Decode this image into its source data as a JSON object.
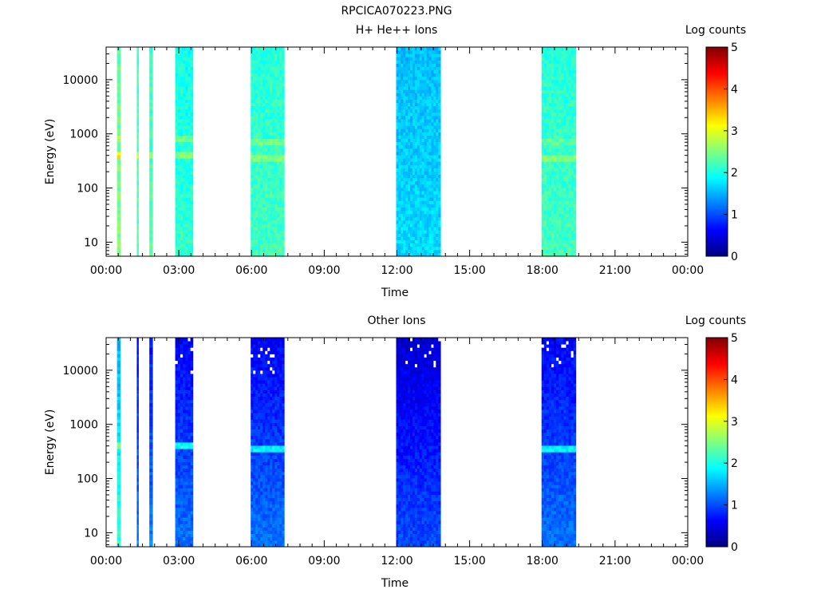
{
  "figure_title": "RPCICA070223.PNG",
  "chart_data": [
    {
      "type": "heatmap",
      "title": "H+ He++ Ions",
      "xlabel": "Time",
      "ylabel": "Energy (eV)",
      "x_ticks": [
        "00:00",
        "03:00",
        "06:00",
        "09:00",
        "12:00",
        "15:00",
        "18:00",
        "21:00",
        "00:00"
      ],
      "x_range_hours": [
        0,
        24
      ],
      "y_scale": "log",
      "y_range_eV": [
        5.5,
        40000
      ],
      "y_ticks": [
        "10",
        "100",
        "1000",
        "10000"
      ],
      "colorbar": {
        "label": "Log counts",
        "range": [
          0,
          5
        ],
        "ticks": [
          "0",
          "1",
          "2",
          "3",
          "4",
          "5"
        ]
      },
      "grid": false,
      "data_intervals": [
        {
          "start": "00:27",
          "end": "00:35",
          "base_log_counts": 2.5,
          "enhanced_bands": [
            {
              "energy_eV": 420,
              "log_counts": 3.3
            },
            {
              "energy_eV": 850,
              "log_counts": 2.7
            }
          ]
        },
        {
          "start": "01:16",
          "end": "01:20",
          "base_log_counts": 2.3,
          "enhanced_bands": [
            {
              "energy_eV": 420,
              "log_counts": 2.8
            }
          ]
        },
        {
          "start": "01:47",
          "end": "01:55",
          "base_log_counts": 2.3,
          "enhanced_bands": [
            {
              "energy_eV": 420,
              "log_counts": 2.7
            }
          ]
        },
        {
          "start": "02:51",
          "end": "03:35",
          "base_log_counts": 2.1,
          "enhanced_bands": [
            {
              "energy_eV": 400,
              "log_counts": 2.6
            },
            {
              "energy_eV": 800,
              "log_counts": 2.5
            }
          ]
        },
        {
          "start": "05:58",
          "end": "07:21",
          "base_log_counts": 2.2,
          "enhanced_bands": [
            {
              "energy_eV": 370,
              "log_counts": 2.6
            },
            {
              "energy_eV": 760,
              "log_counts": 2.5
            }
          ]
        },
        {
          "start": "11:58",
          "end": "13:48",
          "base_log_counts": 1.7,
          "enhanced_bands": []
        },
        {
          "start": "17:58",
          "end": "19:23",
          "base_log_counts": 2.2,
          "enhanced_bands": [
            {
              "energy_eV": 370,
              "log_counts": 2.6
            },
            {
              "energy_eV": 700,
              "log_counts": 2.4
            }
          ]
        }
      ]
    },
    {
      "type": "heatmap",
      "title": "Other Ions",
      "xlabel": "Time",
      "ylabel": "Energy (eV)",
      "x_ticks": [
        "00:00",
        "03:00",
        "06:00",
        "09:00",
        "12:00",
        "15:00",
        "18:00",
        "21:00",
        "00:00"
      ],
      "x_range_hours": [
        0,
        24
      ],
      "y_scale": "log",
      "y_range_eV": [
        5.5,
        40000
      ],
      "y_ticks": [
        "10",
        "100",
        "1000",
        "10000"
      ],
      "colorbar": {
        "label": "Log counts",
        "range": [
          0,
          5
        ],
        "ticks": [
          "0",
          "1",
          "2",
          "3",
          "4",
          "5"
        ]
      },
      "grid": false,
      "data_intervals": [
        {
          "start": "00:27",
          "end": "00:35",
          "base_log_counts": 2.1,
          "enhanced_bands": [
            {
              "energy_eV": 420,
              "log_counts": 2.8
            }
          ]
        },
        {
          "start": "01:16",
          "end": "01:20",
          "base_log_counts": 1.2,
          "enhanced_bands": []
        },
        {
          "start": "01:47",
          "end": "01:55",
          "base_log_counts": 1.3,
          "enhanced_bands": []
        },
        {
          "start": "02:51",
          "end": "03:35",
          "base_log_counts": 1.2,
          "enhanced_bands": [
            {
              "energy_eV": 400,
              "log_counts": 2.2
            }
          ]
        },
        {
          "start": "05:58",
          "end": "07:21",
          "base_log_counts": 1.2,
          "enhanced_bands": [
            {
              "energy_eV": 370,
              "log_counts": 2.1
            }
          ]
        },
        {
          "start": "11:58",
          "end": "13:48",
          "base_log_counts": 1.0,
          "enhanced_bands": []
        },
        {
          "start": "17:58",
          "end": "19:23",
          "base_log_counts": 1.2,
          "enhanced_bands": [
            {
              "energy_eV": 370,
              "log_counts": 2.1
            }
          ]
        }
      ]
    }
  ]
}
